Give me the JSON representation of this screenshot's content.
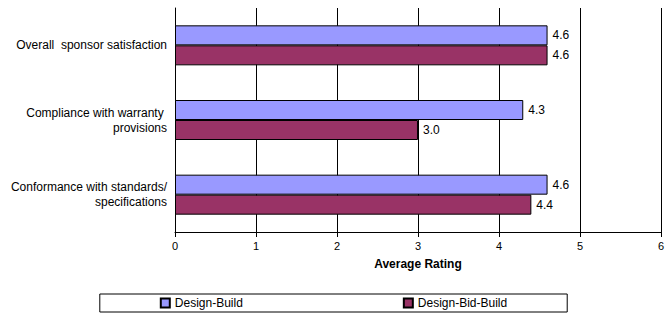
{
  "chart_data": {
    "type": "bar",
    "orientation": "horizontal",
    "categories": [
      "Conformance with standards/specifications",
      "Compliance with warranty provisions",
      "Overall  sponsor satisfaction"
    ],
    "series": [
      {
        "name": "Design-Build",
        "color": "#9999ff",
        "values": [
          4.6,
          4.3,
          4.6
        ],
        "value_labels": [
          "4.6",
          "4.3",
          "4.6"
        ]
      },
      {
        "name": "Design-Bid-Build",
        "color": "#993366",
        "values": [
          4.4,
          3.0,
          4.6
        ],
        "value_labels": [
          "4.4",
          "3.0",
          "4.6"
        ]
      }
    ],
    "x_label": "Average Rating",
    "xlim": [
      0,
      6
    ],
    "xticks": [
      0,
      1,
      2,
      3,
      4,
      5,
      6
    ],
    "grid": true,
    "data_labels": true,
    "legend": "bottom"
  }
}
